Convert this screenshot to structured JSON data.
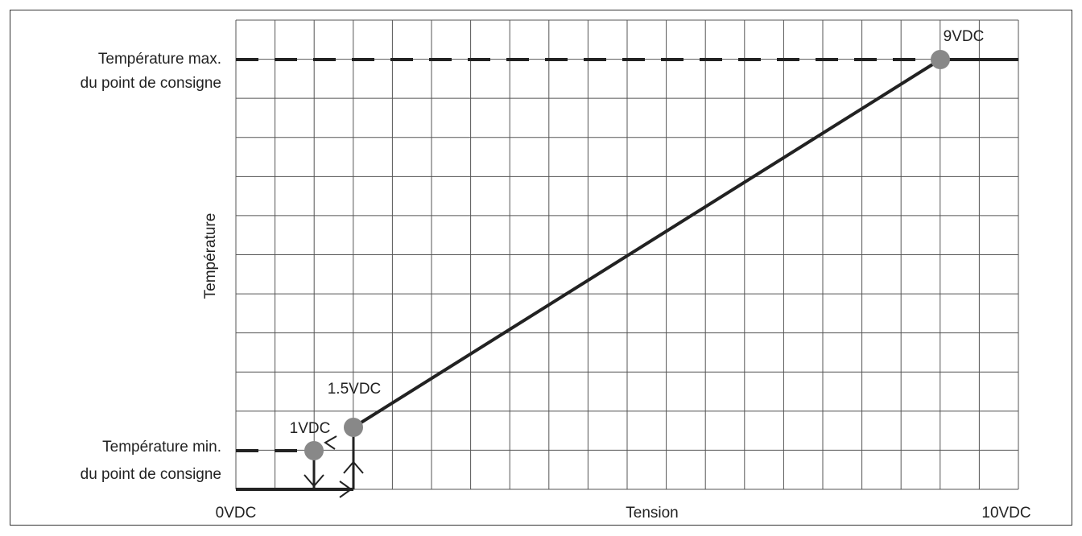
{
  "labels": {
    "max_line1": "Température max.",
    "max_line2": "du point de consigne",
    "min_line1": "Température min.",
    "min_line2": "du point de consigne",
    "y_axis": "Température",
    "x_axis": "Tension",
    "x_start": "0VDC",
    "x_end": "10VDC"
  },
  "points": [
    {
      "label": "1VDC"
    },
    {
      "label": "1.5VDC"
    },
    {
      "label": "9VDC"
    }
  ]
}
